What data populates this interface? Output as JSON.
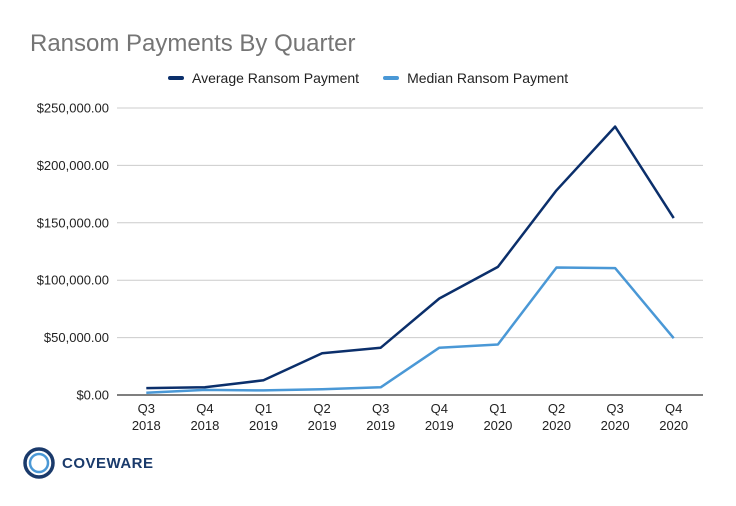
{
  "colors": {
    "average": "#0b2f6b",
    "median": "#4a98d6",
    "grid": "#cccccc",
    "title": "#757575"
  },
  "logo": {
    "text": "COVEWARE",
    "icon": "coveware-ring-logo"
  },
  "chart_data": {
    "type": "line",
    "title": "Ransom Payments By Quarter",
    "xlabel": "",
    "ylabel": "",
    "categories": [
      [
        "Q3",
        "2018"
      ],
      [
        "Q4",
        "2018"
      ],
      [
        "Q1",
        "2019"
      ],
      [
        "Q2",
        "2019"
      ],
      [
        "Q3",
        "2019"
      ],
      [
        "Q4",
        "2019"
      ],
      [
        "Q1",
        "2020"
      ],
      [
        "Q2",
        "2020"
      ],
      [
        "Q3",
        "2020"
      ],
      [
        "Q4",
        "2020"
      ]
    ],
    "ylim": [
      0,
      250000
    ],
    "yticks": [
      "$0.00",
      "$50,000.00",
      "$100,000.00",
      "$150,000.00",
      "$200,000.00",
      "$250,000.00"
    ],
    "grid": true,
    "legend_position": "top",
    "series": [
      {
        "name": "Average Ransom Payment",
        "color": "#0b2f6b",
        "values": [
          6000,
          6700,
          12800,
          36300,
          41200,
          84100,
          111600,
          178300,
          233800,
          154100
        ]
      },
      {
        "name": "Median Ransom Payment",
        "color": "#4a98d6",
        "values": [
          2000,
          4400,
          4000,
          5000,
          6700,
          41200,
          44000,
          111100,
          110500,
          49500
        ]
      }
    ]
  }
}
